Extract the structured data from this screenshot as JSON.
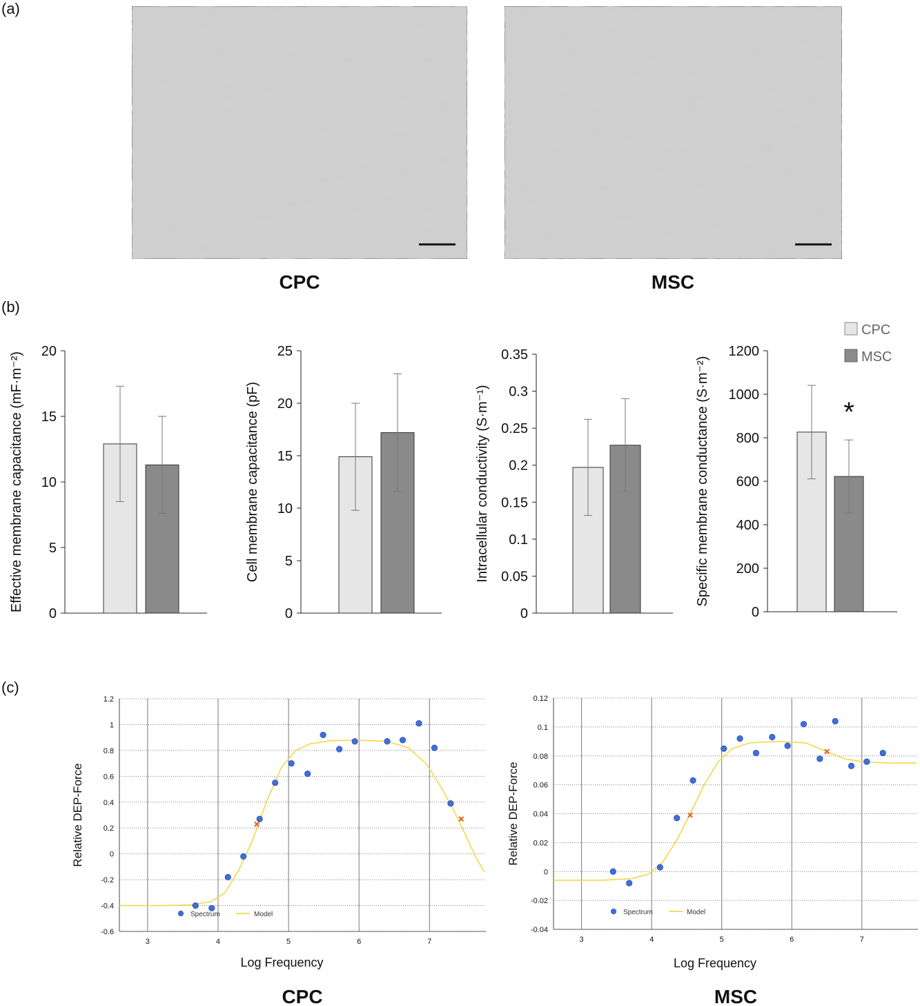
{
  "panels": {
    "a": "(a)",
    "b": "(b)",
    "c": "(c)"
  },
  "micrographs": [
    {
      "caption": "CPC"
    },
    {
      "caption": "MSC"
    }
  ],
  "bar_legend": [
    {
      "label": "CPC",
      "color": "#e6e6e6"
    },
    {
      "label": "MSC",
      "color": "#8a8a8a"
    }
  ],
  "significance_marker": "*",
  "dep_captions": [
    "CPC",
    "MSC"
  ],
  "chart_data": [
    {
      "type": "bar",
      "ylabel": "Effective membrane capacitance (mF·m⁻²)",
      "ylim": [
        0,
        20
      ],
      "yticks": [
        "0",
        "5",
        "10",
        "15",
        "20"
      ],
      "series": [
        {
          "name": "CPC",
          "value": 12.9,
          "error": 4.4,
          "color": "#e6e6e6"
        },
        {
          "name": "MSC",
          "value": 11.3,
          "error": 3.7,
          "color": "#8a8a8a"
        }
      ]
    },
    {
      "type": "bar",
      "ylabel": "Cell membrane capacitance (pF)",
      "ylim": [
        0,
        25
      ],
      "yticks": [
        "0",
        "5",
        "10",
        "15",
        "20",
        "25"
      ],
      "series": [
        {
          "name": "CPC",
          "value": 14.9,
          "error": 5.1,
          "color": "#e6e6e6"
        },
        {
          "name": "MSC",
          "value": 17.2,
          "error": 5.6,
          "color": "#8a8a8a"
        }
      ]
    },
    {
      "type": "bar",
      "ylabel": "Intracellular conductivity (S·m⁻¹)",
      "ylim": [
        0,
        0.35
      ],
      "yticks": [
        "0",
        "0.05",
        "0.1",
        "0.15",
        "0.2",
        "0.25",
        "0.3",
        "0.35"
      ],
      "series": [
        {
          "name": "CPC",
          "value": 0.197,
          "error": 0.065,
          "color": "#e6e6e6"
        },
        {
          "name": "MSC",
          "value": 0.227,
          "error": 0.063,
          "color": "#8a8a8a"
        }
      ]
    },
    {
      "type": "bar",
      "ylabel": "Specific membrane conductance (S·m⁻²)",
      "ylim": [
        0,
        1200
      ],
      "yticks": [
        "0",
        "200",
        "400",
        "600",
        "800",
        "1000",
        "1200"
      ],
      "significant": "MSC",
      "series": [
        {
          "name": "CPC",
          "value": 826,
          "error": 215,
          "color": "#e6e6e6"
        },
        {
          "name": "MSC",
          "value": 622,
          "error": 168,
          "color": "#8a8a8a"
        }
      ]
    },
    {
      "type": "scatter",
      "xlabel": "Log Frequency",
      "ylabel": "Relative DEP-Force",
      "xlim": [
        2.6,
        7.8
      ],
      "ylim": [
        -0.6,
        1.2
      ],
      "xticks": [
        "3",
        "4",
        "5",
        "6",
        "7"
      ],
      "yticks": [
        "-0.6",
        "-0.4",
        "-0.2",
        "0",
        "0.2",
        "0.4",
        "0.6",
        "0.8",
        "1",
        "1.2"
      ],
      "legend": [
        "Spectrum",
        "Model"
      ],
      "colors": {
        "spectrum": "#3f6fdc",
        "model": "#f0d84a",
        "marker": "#e26a2c"
      },
      "spectrum": [
        {
          "x": 3.68,
          "y": -0.4
        },
        {
          "x": 3.91,
          "y": -0.42
        },
        {
          "x": 4.14,
          "y": -0.18
        },
        {
          "x": 4.36,
          "y": -0.02
        },
        {
          "x": 4.59,
          "y": 0.27
        },
        {
          "x": 4.81,
          "y": 0.55
        },
        {
          "x": 5.04,
          "y": 0.7
        },
        {
          "x": 5.27,
          "y": 0.62
        },
        {
          "x": 5.49,
          "y": 0.92
        },
        {
          "x": 5.72,
          "y": 0.81
        },
        {
          "x": 5.94,
          "y": 0.87
        },
        {
          "x": 6.4,
          "y": 0.87
        },
        {
          "x": 6.62,
          "y": 0.88
        },
        {
          "x": 6.85,
          "y": 1.01
        },
        {
          "x": 7.07,
          "y": 0.82
        },
        {
          "x": 7.3,
          "y": 0.39
        }
      ],
      "model_markers": [
        {
          "x": 4.55,
          "y": 0.23
        },
        {
          "x": 7.45,
          "y": 0.27
        }
      ],
      "model": [
        {
          "x": 2.6,
          "y": -0.4
        },
        {
          "x": 3.2,
          "y": -0.4
        },
        {
          "x": 3.6,
          "y": -0.395
        },
        {
          "x": 3.9,
          "y": -0.37
        },
        {
          "x": 4.1,
          "y": -0.3
        },
        {
          "x": 4.3,
          "y": -0.12
        },
        {
          "x": 4.5,
          "y": 0.12
        },
        {
          "x": 4.7,
          "y": 0.42
        },
        {
          "x": 4.9,
          "y": 0.67
        },
        {
          "x": 5.1,
          "y": 0.8
        },
        {
          "x": 5.3,
          "y": 0.85
        },
        {
          "x": 5.6,
          "y": 0.875
        },
        {
          "x": 6.0,
          "y": 0.88
        },
        {
          "x": 6.4,
          "y": 0.87
        },
        {
          "x": 6.7,
          "y": 0.82
        },
        {
          "x": 6.95,
          "y": 0.7
        },
        {
          "x": 7.15,
          "y": 0.53
        },
        {
          "x": 7.35,
          "y": 0.33
        },
        {
          "x": 7.5,
          "y": 0.16
        },
        {
          "x": 7.65,
          "y": -0.02
        },
        {
          "x": 7.78,
          "y": -0.14
        }
      ]
    },
    {
      "type": "scatter",
      "xlabel": "Log Frequency",
      "ylabel": "Relative DEP-Force",
      "xlim": [
        2.6,
        7.8
      ],
      "ylim": [
        -0.04,
        0.12
      ],
      "xticks": [
        "3",
        "4",
        "5",
        "6",
        "7"
      ],
      "yticks": [
        "-0.04",
        "-0.02",
        "0",
        "0.02",
        "0.04",
        "0.06",
        "0.08",
        "0.1",
        "0.12"
      ],
      "legend": [
        "Spectrum",
        "Model"
      ],
      "colors": {
        "spectrum": "#3f6fdc",
        "model": "#f0d84a",
        "marker": "#e26a2c"
      },
      "spectrum": [
        {
          "x": 3.45,
          "y": 0.0
        },
        {
          "x": 3.68,
          "y": -0.008
        },
        {
          "x": 4.12,
          "y": 0.003
        },
        {
          "x": 4.36,
          "y": 0.037
        },
        {
          "x": 4.59,
          "y": 0.063
        },
        {
          "x": 5.03,
          "y": 0.085
        },
        {
          "x": 5.26,
          "y": 0.092
        },
        {
          "x": 5.49,
          "y": 0.082
        },
        {
          "x": 5.72,
          "y": 0.093
        },
        {
          "x": 5.94,
          "y": 0.087
        },
        {
          "x": 6.17,
          "y": 0.102
        },
        {
          "x": 6.4,
          "y": 0.078
        },
        {
          "x": 6.62,
          "y": 0.104
        },
        {
          "x": 6.85,
          "y": 0.073
        },
        {
          "x": 7.07,
          "y": 0.076
        },
        {
          "x": 7.3,
          "y": 0.082
        }
      ],
      "model_markers": [
        {
          "x": 4.55,
          "y": 0.039
        },
        {
          "x": 6.5,
          "y": 0.083
        }
      ],
      "model": [
        {
          "x": 2.6,
          "y": -0.006
        },
        {
          "x": 3.3,
          "y": -0.006
        },
        {
          "x": 3.7,
          "y": -0.005
        },
        {
          "x": 3.95,
          "y": -0.002
        },
        {
          "x": 4.15,
          "y": 0.006
        },
        {
          "x": 4.35,
          "y": 0.021
        },
        {
          "x": 4.55,
          "y": 0.04
        },
        {
          "x": 4.75,
          "y": 0.06
        },
        {
          "x": 4.95,
          "y": 0.076
        },
        {
          "x": 5.15,
          "y": 0.085
        },
        {
          "x": 5.4,
          "y": 0.089
        },
        {
          "x": 5.8,
          "y": 0.09
        },
        {
          "x": 6.2,
          "y": 0.089
        },
        {
          "x": 6.5,
          "y": 0.083
        },
        {
          "x": 6.75,
          "y": 0.078
        },
        {
          "x": 7.0,
          "y": 0.076
        },
        {
          "x": 7.4,
          "y": 0.075
        },
        {
          "x": 7.78,
          "y": 0.075
        }
      ]
    }
  ]
}
